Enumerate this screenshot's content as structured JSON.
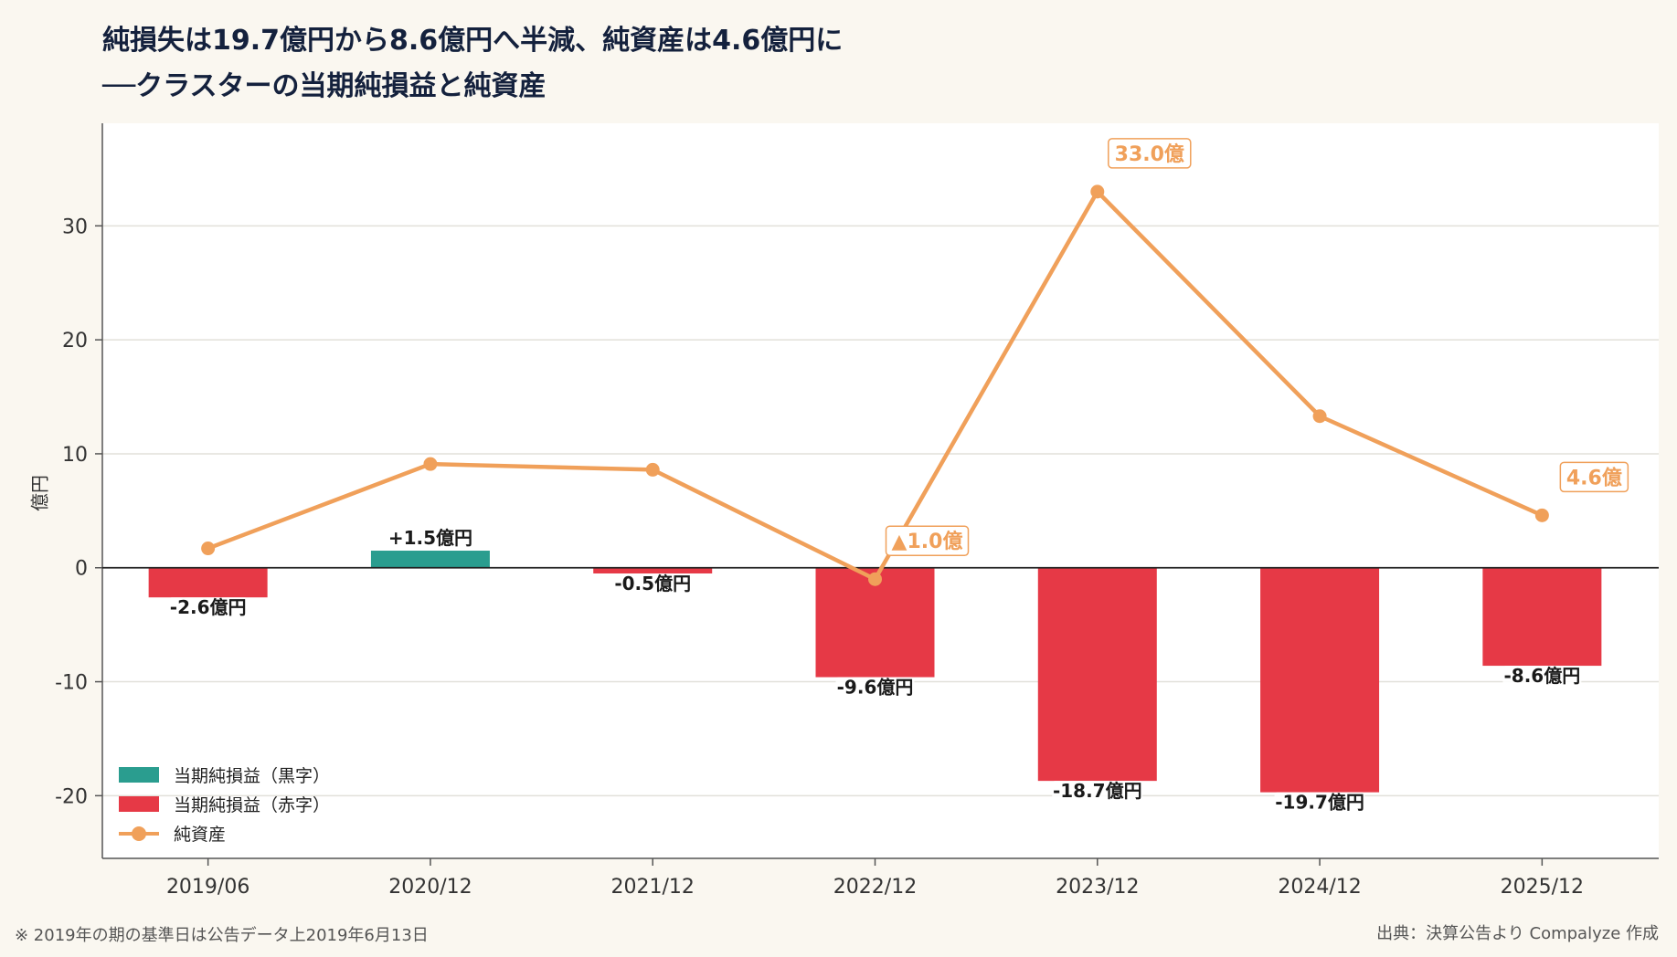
{
  "title": {
    "line1": "純損失は19.7億円から8.6億円へ半減、純資産は4.6億円に",
    "line2": "──クラスターの当期純損益と純資産"
  },
  "footnote": "※ 2019年の期の基準日は公告データ上2019年6月13日",
  "source": "出典：決算公告より Compalyze 作成",
  "legend": {
    "profit": "当期純損益（黒字）",
    "loss": "当期純損益（赤字）",
    "net_assets": "純資産"
  },
  "colors": {
    "profit": "#2a9d8f",
    "loss": "#e63946",
    "net_assets": "#f0a05a",
    "background": "#faf7f0"
  },
  "chart_data": {
    "type": "bar",
    "categories": [
      "2019/06",
      "2020/12",
      "2021/12",
      "2022/12",
      "2023/12",
      "2024/12",
      "2025/12"
    ],
    "ylabel": "億円",
    "ylim": [
      -25.5,
      39
    ],
    "yticks": [
      -20,
      -10,
      0,
      10,
      20,
      30
    ],
    "grid": true,
    "legend_position": "bottom-left",
    "series": [
      {
        "name": "当期純損益",
        "type": "bar",
        "values": [
          -2.6,
          1.5,
          -0.5,
          -9.6,
          -18.7,
          -19.7,
          -8.6
        ],
        "labels": [
          "-2.6億円",
          "+1.5億円",
          "-0.5億円",
          "-9.6億円",
          "-18.7億円",
          "-19.7億円",
          "-8.6億円"
        ]
      },
      {
        "name": "純資産",
        "type": "line",
        "values": [
          1.7,
          9.1,
          8.6,
          -1.0,
          33.0,
          13.3,
          4.6
        ],
        "annotations": [
          {
            "index": 3,
            "text": "▲1.0億"
          },
          {
            "index": 4,
            "text": "33.0億"
          },
          {
            "index": 6,
            "text": "4.6億"
          }
        ]
      }
    ]
  }
}
